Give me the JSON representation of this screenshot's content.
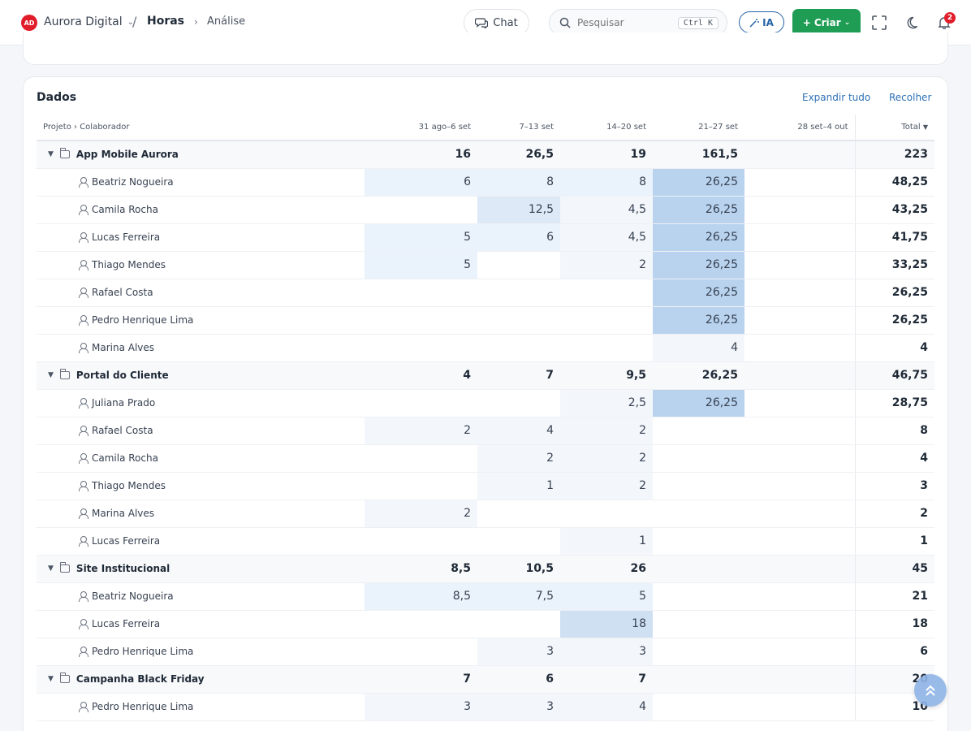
{
  "topbar": {
    "logo_text": "AD",
    "org_name": "Aurora Digital",
    "separator": "/",
    "breadcrumb_main": "Horas",
    "breadcrumb_sub": "Análise",
    "chat_label": "Chat",
    "search_placeholder": "Pesquisar",
    "search_shortcut": "Ctrl K",
    "ia_label": "IA",
    "create_label": "Criar",
    "notification_count": "2",
    "icons": [
      "chat-icon",
      "search-icon",
      "magic-wand-icon",
      "plus-icon",
      "fullscreen-icon",
      "moon-icon",
      "bell-icon"
    ]
  },
  "card": {
    "title": "Dados",
    "expand_all": "Expandir tudo",
    "collapse": "Recolher"
  },
  "table": {
    "headers": [
      "Projeto › Colaborador",
      "31 ago–6 set",
      "7–13 set",
      "14–20 set",
      "21–27 set",
      "28 set–4 out",
      "Total"
    ],
    "rows": [
      {
        "type": "group",
        "name": "App Mobile Aurora",
        "cells": [
          "16",
          "26,5",
          "19",
          "161,5",
          "",
          "223"
        ]
      },
      {
        "type": "member",
        "name": "Beatriz Nogueira",
        "cells": [
          "6",
          "8",
          "8",
          "26,25",
          "",
          "48,25"
        ]
      },
      {
        "type": "member",
        "name": "Camila Rocha",
        "cells": [
          "",
          "12,5",
          "4,5",
          "26,25",
          "",
          "43,25"
        ]
      },
      {
        "type": "member",
        "name": "Lucas Ferreira",
        "cells": [
          "5",
          "6",
          "4,5",
          "26,25",
          "",
          "41,75"
        ]
      },
      {
        "type": "member",
        "name": "Thiago Mendes",
        "cells": [
          "5",
          "",
          "2",
          "26,25",
          "",
          "33,25"
        ]
      },
      {
        "type": "member",
        "name": "Rafael Costa",
        "cells": [
          "",
          "",
          "",
          "26,25",
          "",
          "26,25"
        ]
      },
      {
        "type": "member",
        "name": "Pedro Henrique Lima",
        "cells": [
          "",
          "",
          "",
          "26,25",
          "",
          "26,25"
        ]
      },
      {
        "type": "member",
        "name": "Marina Alves",
        "cells": [
          "",
          "",
          "",
          "4",
          "",
          "4"
        ]
      },
      {
        "type": "group",
        "name": "Portal do Cliente",
        "cells": [
          "4",
          "7",
          "9,5",
          "26,25",
          "",
          "46,75"
        ]
      },
      {
        "type": "member",
        "name": "Juliana Prado",
        "cells": [
          "",
          "",
          "2,5",
          "26,25",
          "",
          "28,75"
        ]
      },
      {
        "type": "member",
        "name": "Rafael Costa",
        "cells": [
          "2",
          "4",
          "2",
          "",
          "",
          "8"
        ]
      },
      {
        "type": "member",
        "name": "Camila Rocha",
        "cells": [
          "",
          "2",
          "2",
          "",
          "",
          "4"
        ]
      },
      {
        "type": "member",
        "name": "Thiago Mendes",
        "cells": [
          "",
          "1",
          "2",
          "",
          "",
          "3"
        ]
      },
      {
        "type": "member",
        "name": "Marina Alves",
        "cells": [
          "2",
          "",
          "",
          "",
          "",
          "2"
        ]
      },
      {
        "type": "member",
        "name": "Lucas Ferreira",
        "cells": [
          "",
          "",
          "1",
          "",
          "",
          "1"
        ]
      },
      {
        "type": "group",
        "name": "Site Institucional",
        "cells": [
          "8,5",
          "10,5",
          "26",
          "",
          "",
          "45"
        ]
      },
      {
        "type": "member",
        "name": "Beatriz Nogueira",
        "cells": [
          "8,5",
          "7,5",
          "5",
          "",
          "",
          "21"
        ]
      },
      {
        "type": "member",
        "name": "Lucas Ferreira",
        "cells": [
          "",
          "",
          "18",
          "",
          "",
          "18"
        ]
      },
      {
        "type": "member",
        "name": "Pedro Henrique Lima",
        "cells": [
          "",
          "3",
          "3",
          "",
          "",
          "6"
        ]
      },
      {
        "type": "group",
        "name": "Campanha Black Friday",
        "cells": [
          "7",
          "6",
          "7",
          "",
          "",
          "20"
        ]
      },
      {
        "type": "member",
        "name": "Pedro Henrique Lima",
        "cells": [
          "3",
          "3",
          "4",
          "",
          "",
          "10"
        ]
      }
    ]
  },
  "colors": {
    "accent": "#2f72b7",
    "create_button": "#1f9d55",
    "badge": "#e11d2a",
    "heat_strong": "#b9d3ef",
    "heat_light": "#eaf2fb"
  },
  "scroll_top_icon": "double-chevron-up-icon"
}
